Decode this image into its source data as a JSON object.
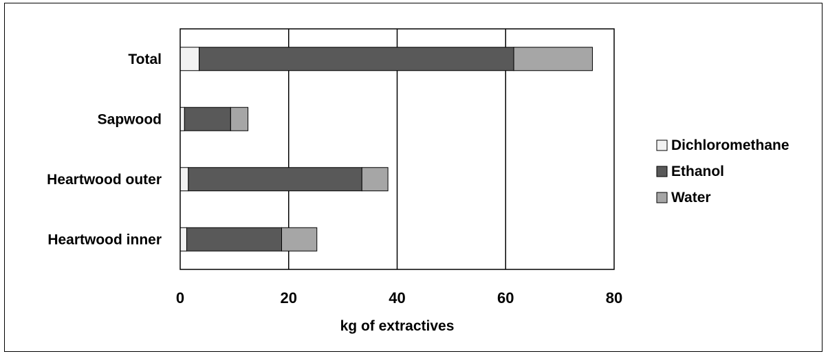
{
  "chart_data": {
    "type": "bar",
    "orientation": "horizontal",
    "stacked": true,
    "categories": [
      "Total",
      "Sapwood",
      "Heartwood outer",
      "Heartwood inner"
    ],
    "series": [
      {
        "name": "Dichloromethane",
        "color": "#f2f2f2",
        "values": [
          3.5,
          0.8,
          1.5,
          1.2
        ]
      },
      {
        "name": "Ethanol",
        "color": "#595959",
        "values": [
          58.0,
          8.5,
          32.0,
          17.5
        ]
      },
      {
        "name": "Water",
        "color": "#a6a6a6",
        "values": [
          14.5,
          3.2,
          4.8,
          6.5
        ]
      }
    ],
    "xlabel": "kg of extractives",
    "ylabel": "",
    "xlim": [
      0,
      80
    ],
    "xticks": [
      "0",
      "20",
      "40",
      "60",
      "80"
    ],
    "xtick_values": [
      0,
      20,
      40,
      60,
      80
    ],
    "grid": true,
    "legend_position": "right"
  }
}
